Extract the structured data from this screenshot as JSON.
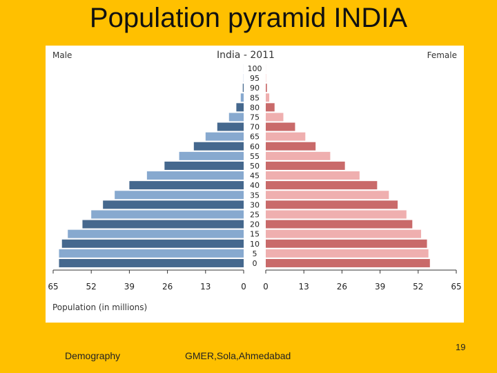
{
  "slide": {
    "title": "Population pyramid INDIA",
    "footer_left": "Demography",
    "footer_center": "GMER,Sola,Ahmedabad",
    "page_number": "19",
    "background_color": "#FFC000"
  },
  "chart_data": {
    "type": "bar",
    "orientation": "horizontal-pyramid",
    "title": "India - 2011",
    "xlabel": "Population (in millions)",
    "left_label": "Male",
    "right_label": "Female",
    "age_groups": [
      "0",
      "5",
      "10",
      "15",
      "20",
      "25",
      "30",
      "35",
      "40",
      "45",
      "50",
      "55",
      "60",
      "65",
      "70",
      "75",
      "80",
      "85",
      "90",
      "95",
      "100"
    ],
    "series": [
      {
        "name": "Male",
        "colors": [
          "#45688E",
          "#87A9CF"
        ],
        "values": [
          63,
          63,
          62,
          60,
          55,
          52,
          48,
          44,
          39,
          33,
          27,
          22,
          17,
          13,
          9,
          5,
          2.5,
          1,
          0.3,
          0.05,
          0.01
        ]
      },
      {
        "name": "Female",
        "colors": [
          "#C96A6A",
          "#EFAFAF"
        ],
        "values": [
          56,
          55.5,
          55,
          53,
          50,
          48,
          45,
          42,
          38,
          32,
          27,
          22,
          17,
          13.5,
          10,
          6,
          3,
          1.2,
          0.4,
          0.08,
          0.01
        ]
      }
    ],
    "xticks_left": [
      "65",
      "52",
      "39",
      "26",
      "13",
      "0"
    ],
    "xticks_right": [
      "0",
      "13",
      "26",
      "39",
      "52",
      "65"
    ],
    "xlim": [
      0,
      65
    ]
  }
}
